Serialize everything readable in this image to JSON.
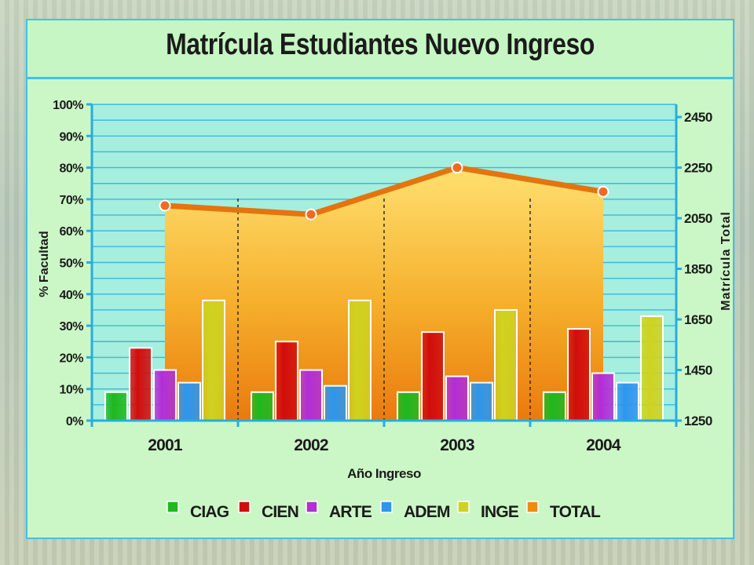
{
  "chart_data": {
    "type": "bar",
    "title": "Matrícula Estudiantes Nuevo Ingreso",
    "xlabel": "Año Ingreso",
    "ylabel": "% Facultad",
    "y2label": "Matrícula Total",
    "categories": [
      "2001",
      "2002",
      "2003",
      "2004"
    ],
    "ylim": [
      0,
      100
    ],
    "y_ticks": [
      "0%",
      "10%",
      "20%",
      "30%",
      "40%",
      "50%",
      "60%",
      "70%",
      "80%",
      "90%",
      "100%"
    ],
    "y2lim": [
      1250,
      2500
    ],
    "y2_ticks": [
      "1250",
      "1450",
      "1650",
      "1850",
      "2050",
      "2250",
      "2450"
    ],
    "series": [
      {
        "name": "CIAG",
        "color": "#1fb81f",
        "values": [
          9,
          9,
          9,
          9
        ]
      },
      {
        "name": "CIEN",
        "color": "#d10d0d",
        "values": [
          23,
          25,
          28,
          29
        ]
      },
      {
        "name": "ARTE",
        "color": "#b12ed8",
        "values": [
          16,
          16,
          14,
          15
        ]
      },
      {
        "name": "ADEM",
        "color": "#2d96ee",
        "values": [
          12,
          11,
          12,
          12
        ]
      },
      {
        "name": "INGE",
        "color": "#cfd21f",
        "values": [
          38,
          38,
          35,
          33
        ]
      }
    ],
    "line_series": {
      "name": "TOTAL",
      "color": "#f08a12",
      "axis": "right",
      "values": [
        2100,
        2065,
        2250,
        2155
      ]
    },
    "grid": true,
    "legend": "bottom"
  }
}
